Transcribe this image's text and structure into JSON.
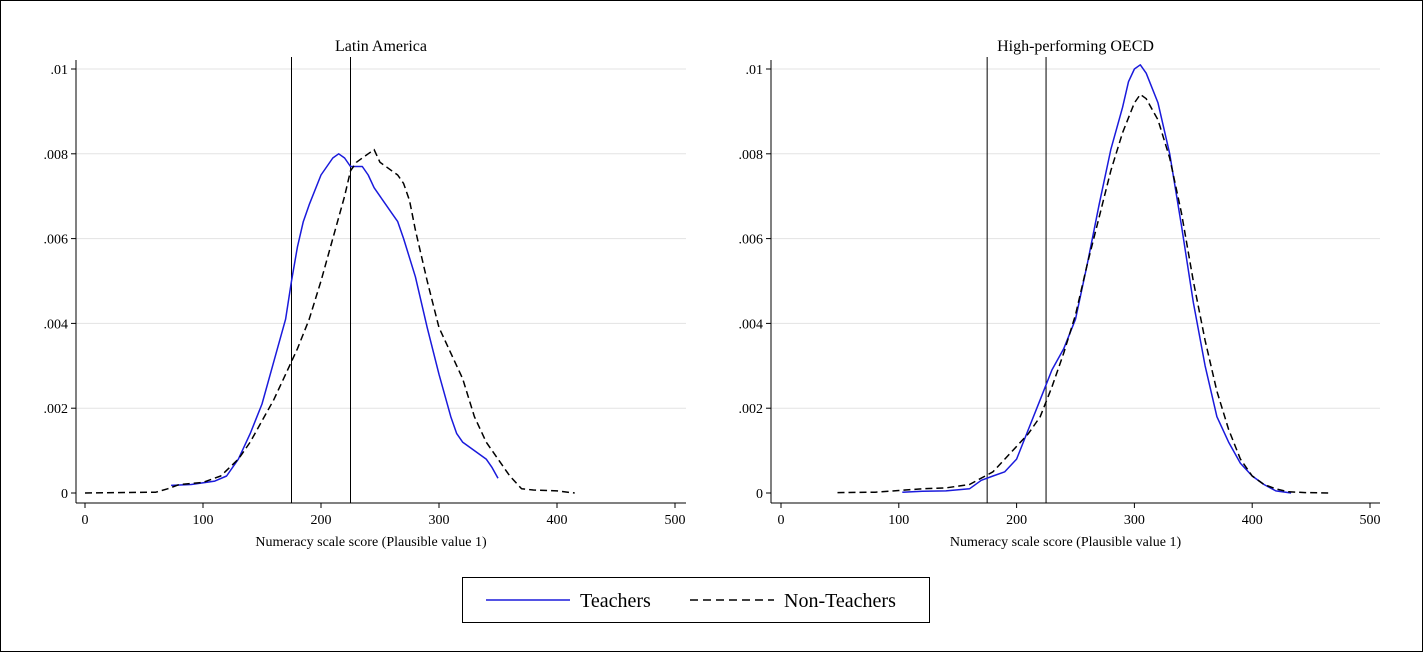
{
  "chart_data": [
    {
      "type": "line",
      "title": "Latin America",
      "xlabel": "Numeracy scale score (Plausible value 1)",
      "ylabel": "",
      "xlim": [
        0,
        500
      ],
      "ylim": [
        0,
        0.0102
      ],
      "x_ticks": [
        0,
        100,
        200,
        300,
        400,
        500
      ],
      "x_tick_labels": [
        "0",
        "100",
        "200",
        "300",
        "400",
        "500"
      ],
      "y_ticks": [
        0,
        0.002,
        0.004,
        0.006,
        0.008,
        0.01
      ],
      "y_tick_labels": [
        "0",
        ".002",
        ".004",
        ".006",
        ".008",
        ".01"
      ],
      "grid": true,
      "vlines": [
        175,
        225
      ],
      "series": [
        {
          "name": "Teachers",
          "color": "#1a1adc",
          "dash": "solid",
          "points": [
            [
              73,
              0.00018
            ],
            [
              90,
              0.0002
            ],
            [
              110,
              0.00028
            ],
            [
              120,
              0.0004
            ],
            [
              130,
              0.0008
            ],
            [
              140,
              0.0014
            ],
            [
              150,
              0.0021
            ],
            [
              160,
              0.0031
            ],
            [
              170,
              0.0041
            ],
            [
              175,
              0.005
            ],
            [
              180,
              0.0058
            ],
            [
              185,
              0.0064
            ],
            [
              190,
              0.0068
            ],
            [
              200,
              0.0075
            ],
            [
              205,
              0.0077
            ],
            [
              210,
              0.0079
            ],
            [
              215,
              0.008
            ],
            [
              220,
              0.0079
            ],
            [
              225,
              0.0077
            ],
            [
              230,
              0.0077
            ],
            [
              235,
              0.0077
            ],
            [
              240,
              0.0075
            ],
            [
              245,
              0.0072
            ],
            [
              250,
              0.007
            ],
            [
              255,
              0.0068
            ],
            [
              260,
              0.0066
            ],
            [
              265,
              0.0064
            ],
            [
              270,
              0.006
            ],
            [
              280,
              0.0051
            ],
            [
              290,
              0.0039
            ],
            [
              300,
              0.0028
            ],
            [
              310,
              0.0018
            ],
            [
              315,
              0.0014
            ],
            [
              320,
              0.0012
            ],
            [
              330,
              0.001
            ],
            [
              340,
              0.0008
            ],
            [
              345,
              0.0006
            ],
            [
              350,
              0.00035
            ]
          ]
        },
        {
          "name": "Non-Teachers",
          "color": "#000000",
          "dash": "dashed",
          "points": [
            [
              0,
              0
            ],
            [
              60,
              2e-05
            ],
            [
              70,
              0.0001
            ],
            [
              80,
              0.0002
            ],
            [
              100,
              0.00025
            ],
            [
              115,
              0.0004
            ],
            [
              130,
              0.0008
            ],
            [
              140,
              0.0012
            ],
            [
              150,
              0.0017
            ],
            [
              160,
              0.0022
            ],
            [
              170,
              0.0028
            ],
            [
              180,
              0.0034
            ],
            [
              190,
              0.0041
            ],
            [
              200,
              0.005
            ],
            [
              210,
              0.006
            ],
            [
              220,
              0.007
            ],
            [
              225,
              0.0076
            ],
            [
              230,
              0.0078
            ],
            [
              235,
              0.0079
            ],
            [
              240,
              0.008
            ],
            [
              245,
              0.0081
            ],
            [
              250,
              0.0078
            ],
            [
              255,
              0.0077
            ],
            [
              260,
              0.0076
            ],
            [
              265,
              0.0075
            ],
            [
              270,
              0.0073
            ],
            [
              275,
              0.0069
            ],
            [
              280,
              0.0062
            ],
            [
              290,
              0.005
            ],
            [
              300,
              0.0039
            ],
            [
              310,
              0.0033
            ],
            [
              320,
              0.0027
            ],
            [
              330,
              0.0018
            ],
            [
              340,
              0.0012
            ],
            [
              350,
              0.0008
            ],
            [
              360,
              0.0004
            ],
            [
              370,
              0.0001
            ],
            [
              380,
              7e-05
            ],
            [
              400,
              5e-05
            ],
            [
              415,
              0
            ]
          ]
        }
      ]
    },
    {
      "type": "line",
      "title": "High-performing OECD",
      "xlabel": "Numeracy scale score (Plausible value 1)",
      "ylabel": "",
      "xlim": [
        0,
        500
      ],
      "ylim": [
        0,
        0.0102
      ],
      "x_ticks": [
        0,
        100,
        200,
        300,
        400,
        500
      ],
      "x_tick_labels": [
        "0",
        "100",
        "200",
        "300",
        "400",
        "500"
      ],
      "y_ticks": [
        0,
        0.002,
        0.004,
        0.006,
        0.008,
        0.01
      ],
      "y_tick_labels": [
        "0",
        ".002",
        ".004",
        ".006",
        ".008",
        ".01"
      ],
      "grid": true,
      "vlines": [
        175,
        225
      ],
      "series": [
        {
          "name": "Teachers",
          "color": "#1a1adc",
          "dash": "solid",
          "points": [
            [
              103,
              2e-05
            ],
            [
              120,
              4e-05
            ],
            [
              140,
              5e-05
            ],
            [
              160,
              0.0001
            ],
            [
              170,
              0.0003
            ],
            [
              180,
              0.0004
            ],
            [
              190,
              0.0005
            ],
            [
              200,
              0.0008
            ],
            [
              210,
              0.0015
            ],
            [
              220,
              0.0022
            ],
            [
              230,
              0.0029
            ],
            [
              240,
              0.0034
            ],
            [
              250,
              0.0041
            ],
            [
              260,
              0.0054
            ],
            [
              270,
              0.0068
            ],
            [
              280,
              0.0081
            ],
            [
              290,
              0.0091
            ],
            [
              295,
              0.0097
            ],
            [
              300,
              0.01
            ],
            [
              305,
              0.0101
            ],
            [
              310,
              0.0099
            ],
            [
              320,
              0.0092
            ],
            [
              330,
              0.008
            ],
            [
              340,
              0.0063
            ],
            [
              350,
              0.0045
            ],
            [
              360,
              0.003
            ],
            [
              370,
              0.0018
            ],
            [
              380,
              0.0012
            ],
            [
              390,
              0.0007
            ],
            [
              400,
              0.0004
            ],
            [
              410,
              0.0002
            ],
            [
              420,
              5e-05
            ],
            [
              433,
              0
            ]
          ]
        },
        {
          "name": "Non-Teachers",
          "color": "#000000",
          "dash": "dashed",
          "points": [
            [
              48,
              1e-05
            ],
            [
              80,
              2e-05
            ],
            [
              100,
              6e-05
            ],
            [
              120,
              0.0001
            ],
            [
              140,
              0.00012
            ],
            [
              160,
              0.0002
            ],
            [
              180,
              0.0005
            ],
            [
              190,
              0.0008
            ],
            [
              200,
              0.0011
            ],
            [
              210,
              0.0014
            ],
            [
              220,
              0.0018
            ],
            [
              230,
              0.0025
            ],
            [
              240,
              0.0033
            ],
            [
              250,
              0.0042
            ],
            [
              260,
              0.0054
            ],
            [
              270,
              0.0065
            ],
            [
              280,
              0.0076
            ],
            [
              290,
              0.0085
            ],
            [
              300,
              0.0092
            ],
            [
              305,
              0.0094
            ],
            [
              310,
              0.0093
            ],
            [
              320,
              0.0088
            ],
            [
              330,
              0.0079
            ],
            [
              340,
              0.0066
            ],
            [
              350,
              0.005
            ],
            [
              360,
              0.0036
            ],
            [
              370,
              0.0024
            ],
            [
              380,
              0.0015
            ],
            [
              390,
              0.0008
            ],
            [
              400,
              0.0004
            ],
            [
              410,
              0.0002
            ],
            [
              420,
              0.0001
            ],
            [
              430,
              3e-05
            ],
            [
              445,
              1e-05
            ],
            [
              467,
              0
            ]
          ]
        }
      ]
    }
  ],
  "legend": {
    "placement": "bottom-center",
    "items": [
      {
        "label": "Teachers",
        "color": "#1a1adc",
        "dash": "solid"
      },
      {
        "label": "Non-Teachers",
        "color": "#000000",
        "dash": "dashed"
      }
    ]
  }
}
